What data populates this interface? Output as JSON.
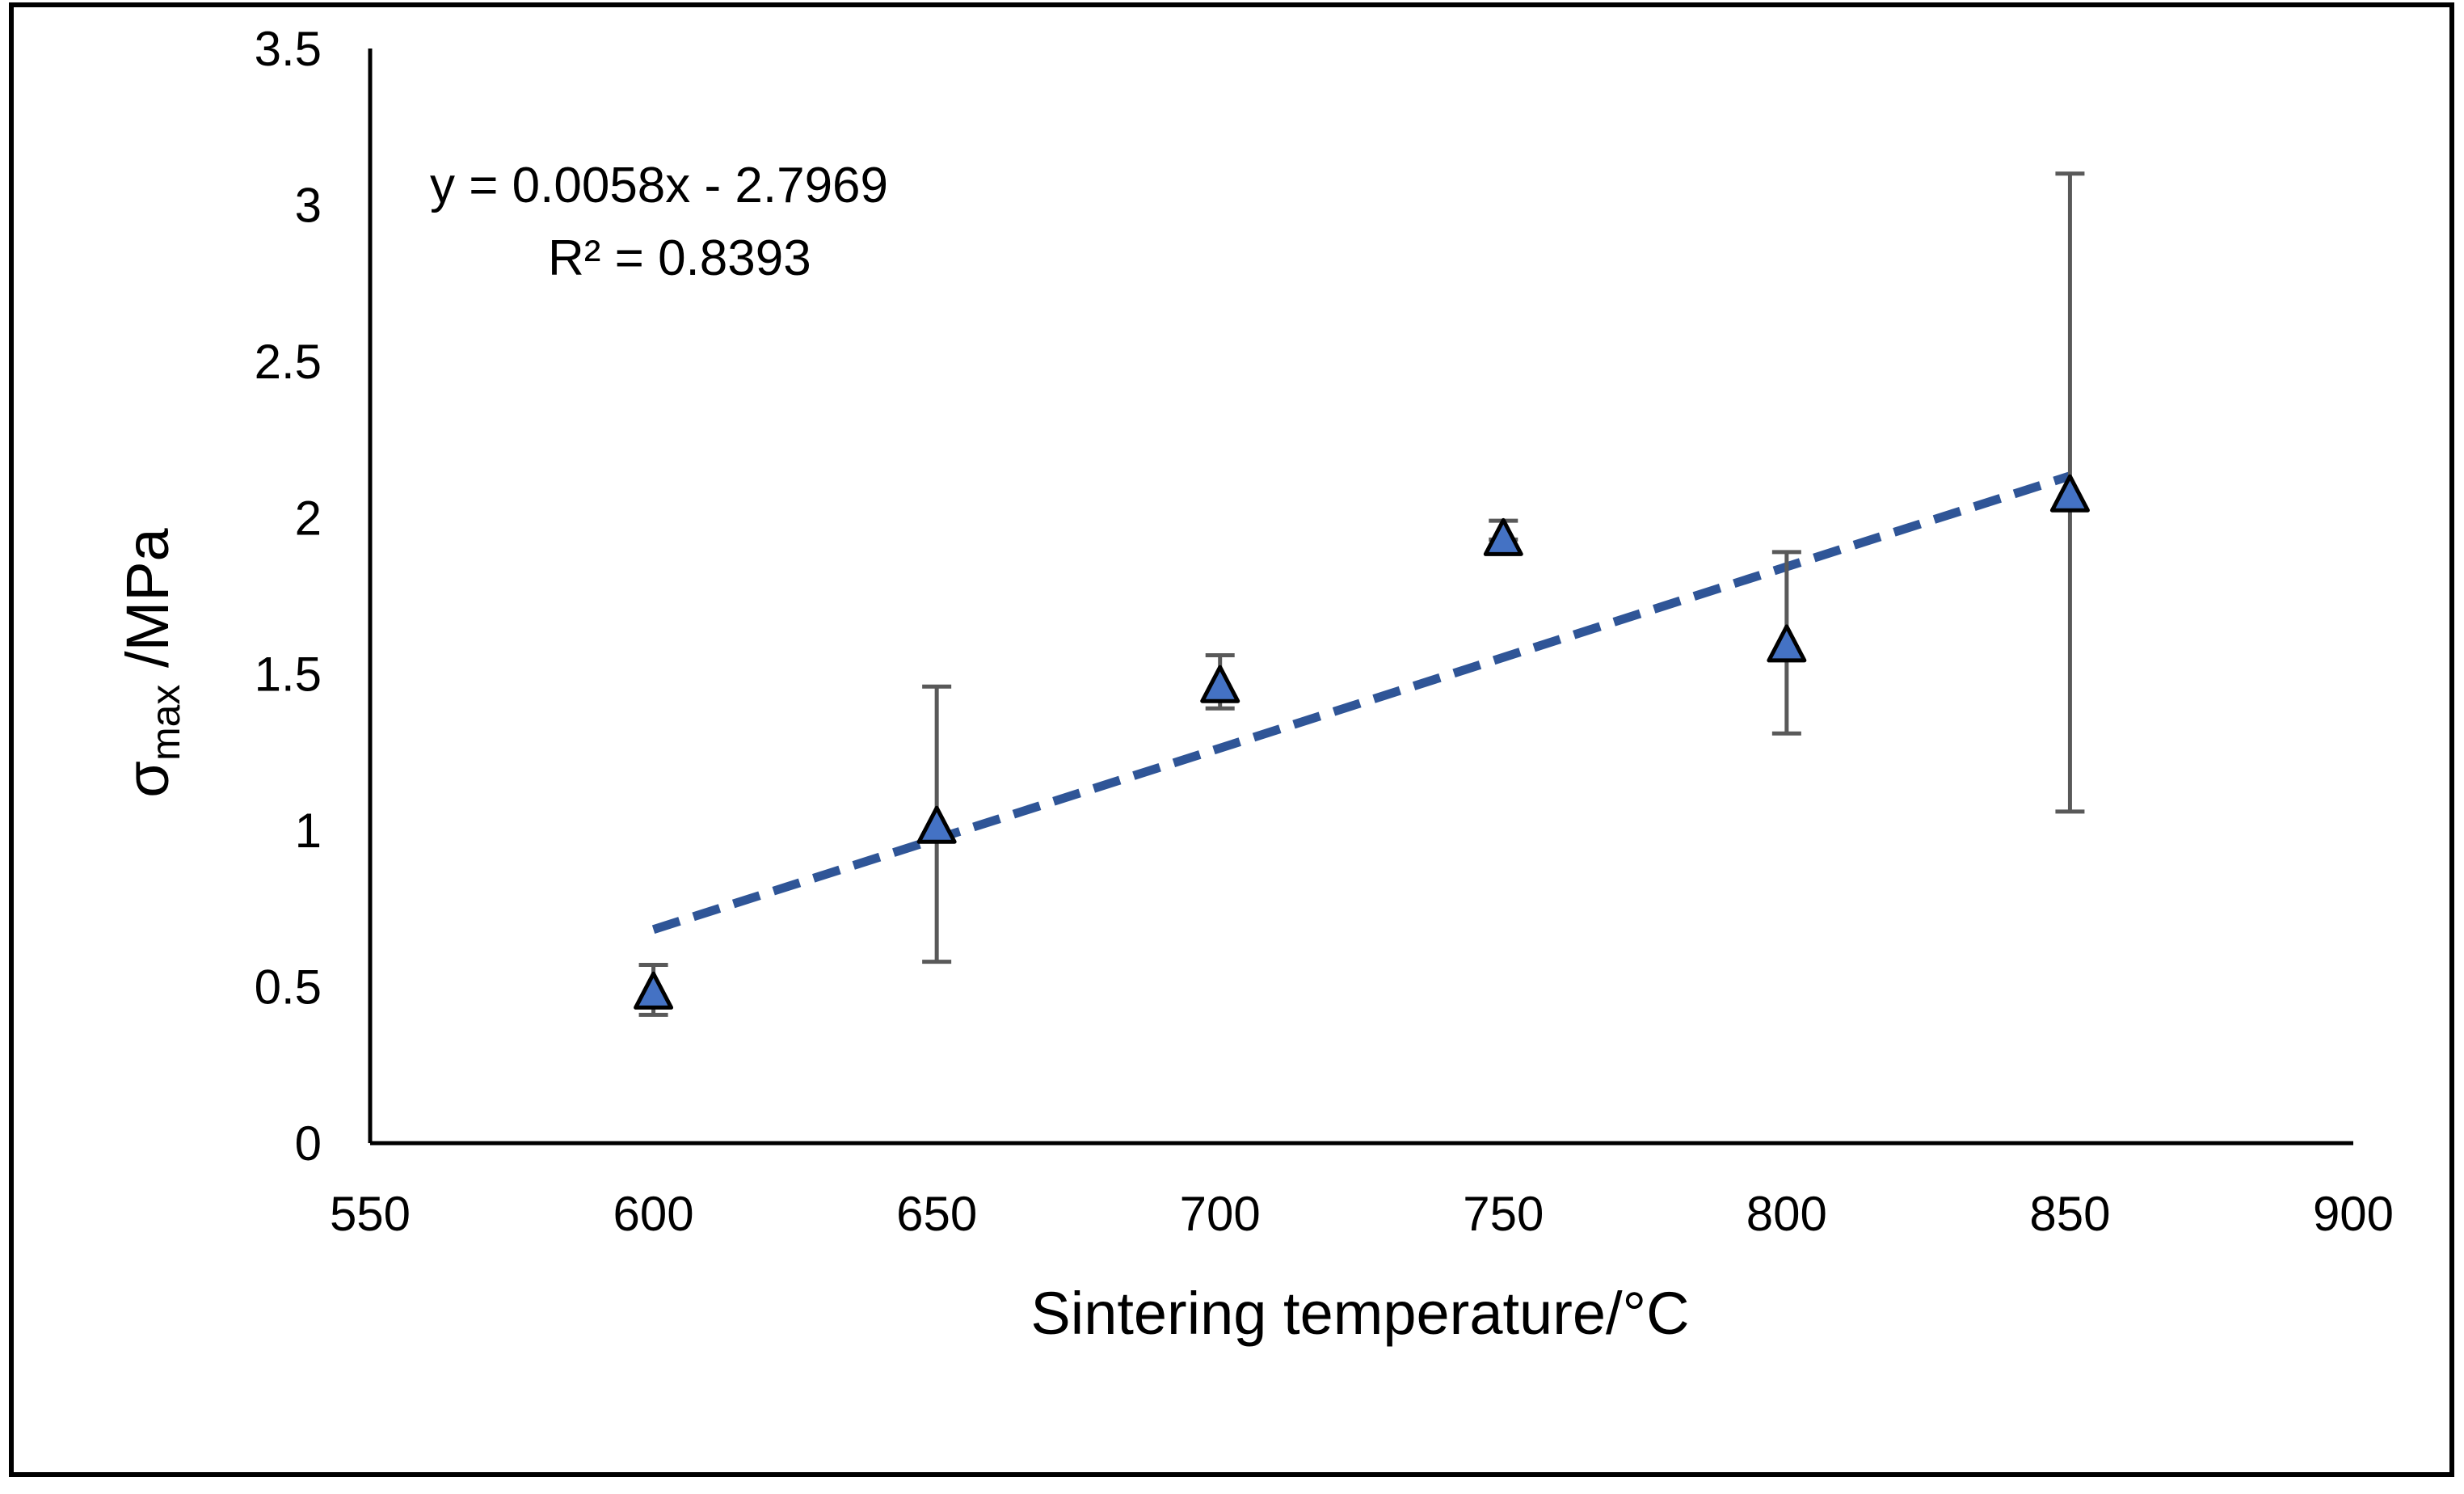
{
  "chart_data": {
    "type": "scatter",
    "title": "",
    "xlabel": "Sintering temperature/°C",
    "ylabel": {
      "symbol": "σ",
      "subscript": "max",
      "unit": " /MPa"
    },
    "xlim": [
      550,
      900
    ],
    "ylim": [
      0,
      3.5
    ],
    "xticks": [
      550,
      600,
      650,
      700,
      750,
      800,
      850,
      900
    ],
    "yticks": [
      0,
      0.5,
      1,
      1.5,
      2,
      2.5,
      3,
      3.5
    ],
    "xtick_labels": [
      "550",
      "600",
      "650",
      "700",
      "750",
      "800",
      "850",
      "900"
    ],
    "ytick_labels": [
      "0",
      "0.5",
      "1",
      "1.5",
      "2",
      "2.5",
      "3",
      "3.5"
    ],
    "grid": false,
    "series": [
      {
        "name": "σmax",
        "marker": "triangle",
        "color": "#4472C4",
        "points": [
          {
            "x": 600,
            "y": 0.48,
            "err_low": 0.41,
            "err_high": 0.57
          },
          {
            "x": 650,
            "y": 1.01,
            "err_low": 0.58,
            "err_high": 1.46
          },
          {
            "x": 700,
            "y": 1.46,
            "err_low": 1.39,
            "err_high": 1.56
          },
          {
            "x": 750,
            "y": 1.93,
            "err_low": 1.93,
            "err_high": 1.99
          },
          {
            "x": 800,
            "y": 1.59,
            "err_low": 1.31,
            "err_high": 1.89
          },
          {
            "x": 850,
            "y": 2.07,
            "err_low": 1.06,
            "err_high": 3.1
          }
        ]
      }
    ],
    "trendline": {
      "type": "linear",
      "color": "#2F5597",
      "style": "dashed",
      "slope": 0.0058,
      "intercept": -2.7969,
      "x_range": [
        600,
        850
      ],
      "equation_text": "y = 0.0058x - 2.7969",
      "r2_text": "R² = 0.8393"
    },
    "errorbar_color": "#595959"
  }
}
